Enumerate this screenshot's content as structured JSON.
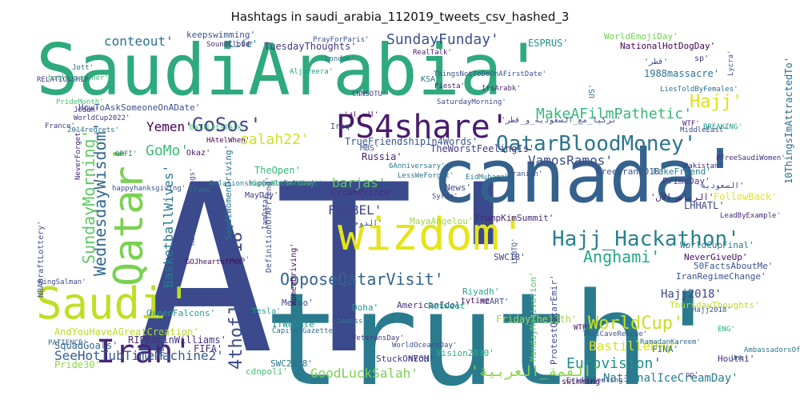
{
  "chart_data": {
    "type": "wordcloud",
    "title": "Hashtags in saudi_arabia_112019_tweets_csv_hashed_3",
    "words": [
      {
        "text": "SaudiArabia'",
        "color": "#2eaa7d"
      },
      {
        "text": "AT'",
        "color": "#3b4a8c"
      },
      {
        "text": "truth'",
        "color": "#2a7b8e"
      },
      {
        "text": "canada'",
        "color": "#34618d"
      },
      {
        "text": "wizdom'",
        "color": "#e6e419"
      },
      {
        "text": "Saudi'",
        "color": "#bfdf24"
      },
      {
        "text": "Qatar'",
        "color": "#7ad151"
      },
      {
        "text": "Iran'",
        "color": "#482576"
      },
      {
        "text": "PS4share'",
        "color": "#481b6d"
      },
      {
        "text": "QatarBloodMoney'",
        "color": "#2b758e"
      },
      {
        "text": "Hajj_Hackathon'",
        "color": "#26828e"
      },
      {
        "text": "OpposeQatarVisit'",
        "color": "#33638d"
      },
      {
        "text": "4thofJuly2018'",
        "color": "#3e4c8a"
      },
      {
        "text": "WednesdayWisdom'",
        "color": "#31688e"
      },
      {
        "text": "SundayMorning'",
        "color": "#5ec962"
      },
      {
        "text": "GoSos'",
        "color": "#3f4788"
      },
      {
        "text": "MakeAFilmPathetic'",
        "color": "#35b779"
      },
      {
        "text": "SundayFunday'",
        "color": "#3b528b"
      },
      {
        "text": "Hajj'",
        "color": "#dde318"
      },
      {
        "text": "GoodLuckSalah'",
        "color": "#7ad151"
      },
      {
        "text": "SeeHotTubTimeMachine2'",
        "color": "#365d8d"
      },
      {
        "text": "Eurovision'",
        "color": "#21918c"
      },
      {
        "text": "WorldCup'",
        "color": "#c8e020"
      },
      {
        "text": "Anghami'",
        "color": "#22a884"
      },
      {
        "text": "salah22'",
        "color": "#d2e21b"
      },
      {
        "text": "VamosRamos'",
        "color": "#3d4e8a"
      },
      {
        "text": "GoMo'",
        "color": "#3dbc74"
      },
      {
        "text": "Yemen'",
        "color": "#440154"
      },
      {
        "text": "FRABEL'",
        "color": "#414487"
      },
      {
        "text": "barjas'",
        "color": "#5ec962"
      },
      {
        "text": "BastilleDay'",
        "color": "#d8e219"
      },
      {
        "text": "Hajj2018'",
        "color": "#404688"
      },
      {
        "text": "conteout'",
        "color": "#2c718e"
      },
      {
        "text": "BasketballWives'",
        "color": "#2a788e"
      },
      {
        "text": "NationalIceCreamDay'",
        "color": "#287c8e"
      },
      {
        "text": "'القمة_العربية'",
        "color": "#86d549"
      },
      {
        "text": "RIPRobinWilliams'",
        "color": "#46307e"
      },
      {
        "text": "AndYouHaveAGreatCreation'",
        "color": "#b5de2b"
      },
      {
        "text": "SquadGoals'",
        "color": "#31688e"
      },
      {
        "text": "Pride30'",
        "color": "#90d743"
      },
      {
        "text": "FIFA'",
        "color": "#472c7a"
      },
      {
        "text": "TrueFriendshipIn4Words'",
        "color": "#39568c"
      },
      {
        "text": "TuesdayThoughts'",
        "color": "#453781"
      },
      {
        "text": "keepswimming'",
        "color": "#3b528b"
      },
      {
        "text": "Life'",
        "color": "#2c728e"
      },
      {
        "text": "ESPRUS'",
        "color": "#21918c"
      },
      {
        "text": "WorldEmojiDay'",
        "color": "#73d056"
      },
      {
        "text": "NationalHotDogDay'",
        "color": "#440154"
      },
      {
        "text": "1988massacre'",
        "color": "#2d708e"
      },
      {
        "text": "HowToAskSomeoneOnADate'",
        "color": "#3b528b"
      },
      {
        "text": "FreeIran2018'",
        "color": "#3a538b"
      },
      {
        "text": "FakeFriend'",
        "color": "#287d8e"
      },
      {
        "text": "PrimeDay'",
        "color": "#453781"
      },
      {
        "text": "TheWorstFeelingIs'",
        "color": "#443983"
      },
      {
        "text": "Russia'",
        "color": "#482475"
      },
      {
        "text": "MBS'",
        "color": "#3b528b"
      },
      {
        "text": "TheOpen'",
        "color": "#38b977"
      },
      {
        "text": "MayDay'",
        "color": "#453882"
      },
      {
        "text": "News'",
        "color": "#3e4989"
      },
      {
        "text": "CrownPrince'",
        "color": "#472d7b"
      },
      {
        "text": "MayaAngelou'",
        "color": "#9bd93c"
      },
      {
        "text": "TrumpKimSummit'",
        "color": "#482878"
      },
      {
        "text": "LHHATL'",
        "color": "#3f4889"
      },
      {
        "text": "FollowBack'",
        "color": "#e7e419"
      },
      {
        "text": "10ThingsImAttractedTo'",
        "color": "#2f6b8e"
      },
      {
        "text": "SWC18'",
        "color": "#414487"
      },
      {
        "text": "HEART'",
        "color": "#3e4a89"
      },
      {
        "text": "Riyadh'",
        "color": "#22a785"
      },
      {
        "text": "NeverGiveUp'",
        "color": "#460b5e"
      },
      {
        "text": "50FactsAboutMe'",
        "color": "#3b528b"
      },
      {
        "text": "WorldCupFinal'",
        "color": "#2a788e"
      },
      {
        "text": "IranRegimeChange'",
        "color": "#3a548c"
      },
      {
        "text": "FridayThe13th'",
        "color": "#a0da39"
      },
      {
        "text": "AmericanIdol'",
        "color": "#46327e"
      },
      {
        "text": "Retweet'",
        "color": "#1f9e89"
      },
      {
        "text": "Doha'",
        "color": "#1f988b"
      },
      {
        "text": "MeToo'",
        "color": "#3e4989"
      },
      {
        "text": "IfWeDate'",
        "color": "#228d8d"
      },
      {
        "text": "SWC2018'",
        "color": "#2a768e"
      },
      {
        "text": "Vision2030'",
        "color": "#29af7f"
      },
      {
        "text": "NEOM'",
        "color": "#3f4889"
      },
      {
        "text": "StuckOnYou'",
        "color": "#463480"
      },
      {
        "text": "MondayMotivation'",
        "color": "#58c765"
      },
      {
        "text": "ProtestQatarEmir'",
        "color": "#3d4d8a"
      },
      {
        "text": "FINA'",
        "color": "#2c718e"
      },
      {
        "text": "ThursdayThoughts'",
        "color": "#bade28"
      },
      {
        "text": "Houthi'",
        "color": "#472f7d"
      },
      {
        "text": "cdnpoli'",
        "color": "#46c06f"
      },
      {
        "text": "friendshipday'",
        "color": "#404588"
      },
      {
        "text": "GreenFalcons'",
        "color": "#1fa187"
      },
      {
        "text": "Tesla'",
        "color": "#1fa088"
      },
      {
        "text": "Iraq'",
        "color": "#3b528b"
      },
      {
        "text": "Okaz'",
        "color": "#481668"
      },
      {
        "text": "sp'",
        "color": "#453581"
      },
      {
        "text": "US'",
        "color": "#2f6c8e"
      },
      {
        "text": "KSA'",
        "color": "#2d708e"
      },
      {
        "text": "tvtime'",
        "color": "#471063"
      },
      {
        "text": "swimming'",
        "color": "#46085c"
      },
      {
        "text": "RELATIONSHIP'",
        "color": "#433e85"
      },
      {
        "text": "London'",
        "color": "#2e6f8e"
      },
      {
        "text": "France'",
        "color": "#433d84"
      },
      {
        "text": "PATIENCE'",
        "color": "#32658e"
      },
      {
        "text": "KingSalman'",
        "color": "#3d4e8a"
      },
      {
        "text": "Trump'",
        "color": "#2b748e"
      },
      {
        "text": "Barjas'",
        "color": "#3e4a89"
      },
      {
        "text": "LGBTQ'",
        "color": "#3b528b"
      },
      {
        "text": "Jedah'",
        "color": "#472e7c"
      },
      {
        "text": "Iranian'",
        "color": "#39568c"
      },
      {
        "text": "Syria'",
        "color": "#414287"
      },
      {
        "text": "Jott'",
        "color": "#2e6e8e"
      },
      {
        "text": "CNNSOTU'",
        "color": "#404588"
      },
      {
        "text": "ENG'",
        "color": "#26ad81"
      },
      {
        "text": "Pakistan'",
        "color": "#472a7a"
      },
      {
        "text": "SaturdayMorning'",
        "color": "#3e4989"
      },
      {
        "text": "EidMubarak'",
        "color": "#2a788e"
      },
      {
        "text": "RealTalk'",
        "color": "#481a6c"
      },
      {
        "text": "PrayForParis'",
        "color": "#3b518b"
      },
      {
        "text": "SoundCloud'",
        "color": "#482979"
      },
      {
        "text": "Aljazeera'",
        "color": "#1fa088"
      },
      {
        "text": "np'",
        "color": "#433e85"
      },
      {
        "text": "CapitalGazette'",
        "color": "#2e6d8e"
      },
      {
        "text": "WorldOceansDay'",
        "color": "#3b528b"
      },
      {
        "text": "VeteransDay'",
        "color": "#453781"
      },
      {
        "text": "IamQatar'",
        "color": "#404688"
      },
      {
        "text": "HappyMothersDay'",
        "color": "#4ac16d"
      },
      {
        "text": "WomenDriving'",
        "color": "#46075a"
      },
      {
        "text": "SaudiWomenDriving'",
        "color": "#2a788e"
      },
      {
        "text": "NBADraftLottery'",
        "color": "#3c4f8a"
      },
      {
        "text": "RelationshipGoalsIn3Words'",
        "color": "#2a788e"
      },
      {
        "text": "BREAKING'",
        "color": "#1e9b8a"
      },
      {
        "text": "LiesToldByFemales'",
        "color": "#2f6b8e"
      },
      {
        "text": "FridayFeeling'",
        "color": "#3e4c8a"
      },
      {
        "text": "ThisCaveRescue'",
        "color": "#3b528b"
      },
      {
        "text": "RamadanKareem'",
        "color": "#2f6c8e"
      },
      {
        "text": "DefinitionOfAFriend'",
        "color": "#3d4d8a"
      },
      {
        "text": "hotlubparther'",
        "color": "#32b67a"
      },
      {
        "text": "GOJheartofPHX'",
        "color": "#450559"
      },
      {
        "text": "BallLetsTalk'",
        "color": "#46c06f"
      },
      {
        "text": "HAtelWhen'",
        "color": "#440154"
      },
      {
        "text": "WorldCup2022'",
        "color": "#453781"
      },
      {
        "text": "2014regrets'",
        "color": "#2c728e"
      },
      {
        "text": "PrideMonth'",
        "color": "#46c06f"
      },
      {
        "text": "MiddleEast'",
        "color": "#3e4989"
      },
      {
        "text": "LeadByExample'",
        "color": "#472c7a"
      },
      {
        "text": "NeverForget'",
        "color": "#482677"
      },
      {
        "text": "GPFI'",
        "color": "#2e6f8e"
      },
      {
        "text": "MLBJK'",
        "color": "#3b528b"
      },
      {
        "text": "happyhanksgiving'",
        "color": "#3b528b"
      },
      {
        "text": "HeavenlyBlessings'",
        "color": "#3b528b"
      },
      {
        "text": "AmbassadorsOfTheWord'",
        "color": "#2a788e"
      },
      {
        "text": "WTF'",
        "color": "#482475"
      },
      {
        "text": "Fiesta'",
        "color": "#481b6d"
      },
      {
        "text": "ThingsNotToDoOnAFirstDate'",
        "color": "#3b528b"
      },
      {
        "text": "6Anniversary'",
        "color": "#2a788e"
      },
      {
        "text": "LessWeForget'",
        "color": "#2a788e"
      },
      {
        "text": "ItsArabk'",
        "color": "#482878"
      },
      {
        "text": "Unc'",
        "color": "#3b528b"
      },
      {
        "text": "WTP'",
        "color": "#440154"
      },
      {
        "text": "imabss'",
        "color": "#2a788e"
      },
      {
        "text": "Lycra'",
        "color": "#3b528b"
      },
      {
        "text": "Hajj2018'",
        "color": "#3b528b"
      },
      {
        "text": "#FreeSaudiWomen'",
        "color": "#46307e"
      },
      {
        "text": "'السعودية'",
        "color": "#3e4989"
      },
      {
        "text": "'الرياض_الآن'",
        "color": "#482878"
      },
      {
        "text": "'تركيا_مع_السعودية_و_قطر'",
        "color": "#3e4989"
      },
      {
        "text": "'الدوحة'",
        "color": "#3b528b"
      },
      {
        "text": "'العراق'",
        "color": "#440154"
      },
      {
        "text": "'قطر'",
        "color": "#3b528b"
      }
    ]
  }
}
